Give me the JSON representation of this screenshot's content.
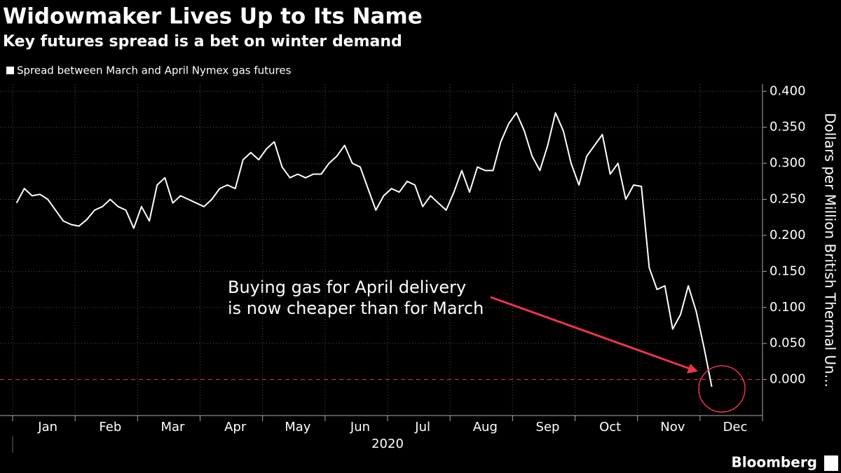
{
  "chart_data": {
    "type": "line",
    "title": "Widowmaker Lives Up to Its Name",
    "subtitle": "Key futures spread is a bet on winter demand",
    "x_label": "2020",
    "y_label": "Dollars per Million British Thermal Un...",
    "annotation": [
      "Buying gas for April delivery",
      "is now cheaper than for March"
    ],
    "source": "Bloomberg",
    "categories": [
      null,
      null,
      null,
      null,
      "Jan",
      null,
      null,
      null,
      null,
      null,
      null,
      null,
      "Feb",
      null,
      null,
      null,
      null,
      null,
      null,
      null,
      "Mar",
      null,
      null,
      null,
      null,
      null,
      null,
      null,
      "Apr",
      null,
      null,
      null,
      null,
      null,
      null,
      null,
      "May",
      null,
      null,
      null,
      null,
      null,
      null,
      null,
      "Jun",
      null,
      null,
      null,
      null,
      null,
      null,
      null,
      "Jul",
      null,
      null,
      null,
      null,
      null,
      null,
      null,
      "Aug",
      null,
      null,
      null,
      null,
      null,
      null,
      null,
      "Sep",
      null,
      null,
      null,
      null,
      null,
      null,
      null,
      "Oct",
      null,
      null,
      null,
      null,
      null,
      null,
      null,
      "Nov",
      null,
      null,
      null,
      null,
      null,
      null,
      null,
      "Dec",
      null,
      null,
      null
    ],
    "series": [
      {
        "name": "Spread between March and April Nymex gas futures",
        "color": "#ffffff",
        "values": [
          0.245,
          0.265,
          0.255,
          0.257,
          0.25,
          0.235,
          0.22,
          0.215,
          0.213,
          0.222,
          0.235,
          0.24,
          0.25,
          0.24,
          0.235,
          0.21,
          0.24,
          0.22,
          0.27,
          0.28,
          0.245,
          0.255,
          0.25,
          0.245,
          0.24,
          0.25,
          0.265,
          0.27,
          0.265,
          0.305,
          0.315,
          0.305,
          0.32,
          0.33,
          0.295,
          0.28,
          0.285,
          0.28,
          0.285,
          0.285,
          0.3,
          0.31,
          0.325,
          0.3,
          0.295,
          0.265,
          0.235,
          0.255,
          0.265,
          0.26,
          0.275,
          0.27,
          0.24,
          0.255,
          0.245,
          0.235,
          0.26,
          0.29,
          0.26,
          0.295,
          0.29,
          0.29,
          0.33,
          0.355,
          0.37,
          0.345,
          0.31,
          0.29,
          0.325,
          0.37,
          0.345,
          0.3,
          0.27,
          0.31,
          0.325,
          0.34,
          0.285,
          0.3,
          0.25,
          0.27,
          0.268,
          0.155,
          0.125,
          0.13,
          0.07,
          0.09,
          0.13,
          0.095,
          0.045,
          -0.01,
          null,
          null,
          null,
          null,
          null,
          null
        ]
      }
    ],
    "ylim": [
      -0.05,
      0.41
    ],
    "yticks": [
      {
        "value": 0,
        "label": "0.000"
      },
      {
        "value": 0.05,
        "label": "0.050"
      },
      {
        "value": 0.1,
        "label": "0.100"
      },
      {
        "value": 0.15,
        "label": "0.150"
      },
      {
        "value": 0.2,
        "label": "0.200"
      },
      {
        "value": 0.25,
        "label": "0.250"
      },
      {
        "value": 0.3,
        "label": "0.300"
      },
      {
        "value": 0.35,
        "label": "0.350"
      },
      {
        "value": 0.4,
        "label": "0.400"
      }
    ],
    "grid": true,
    "zero_line_color": "#e8344e",
    "annotation_color": "#e8344e"
  }
}
